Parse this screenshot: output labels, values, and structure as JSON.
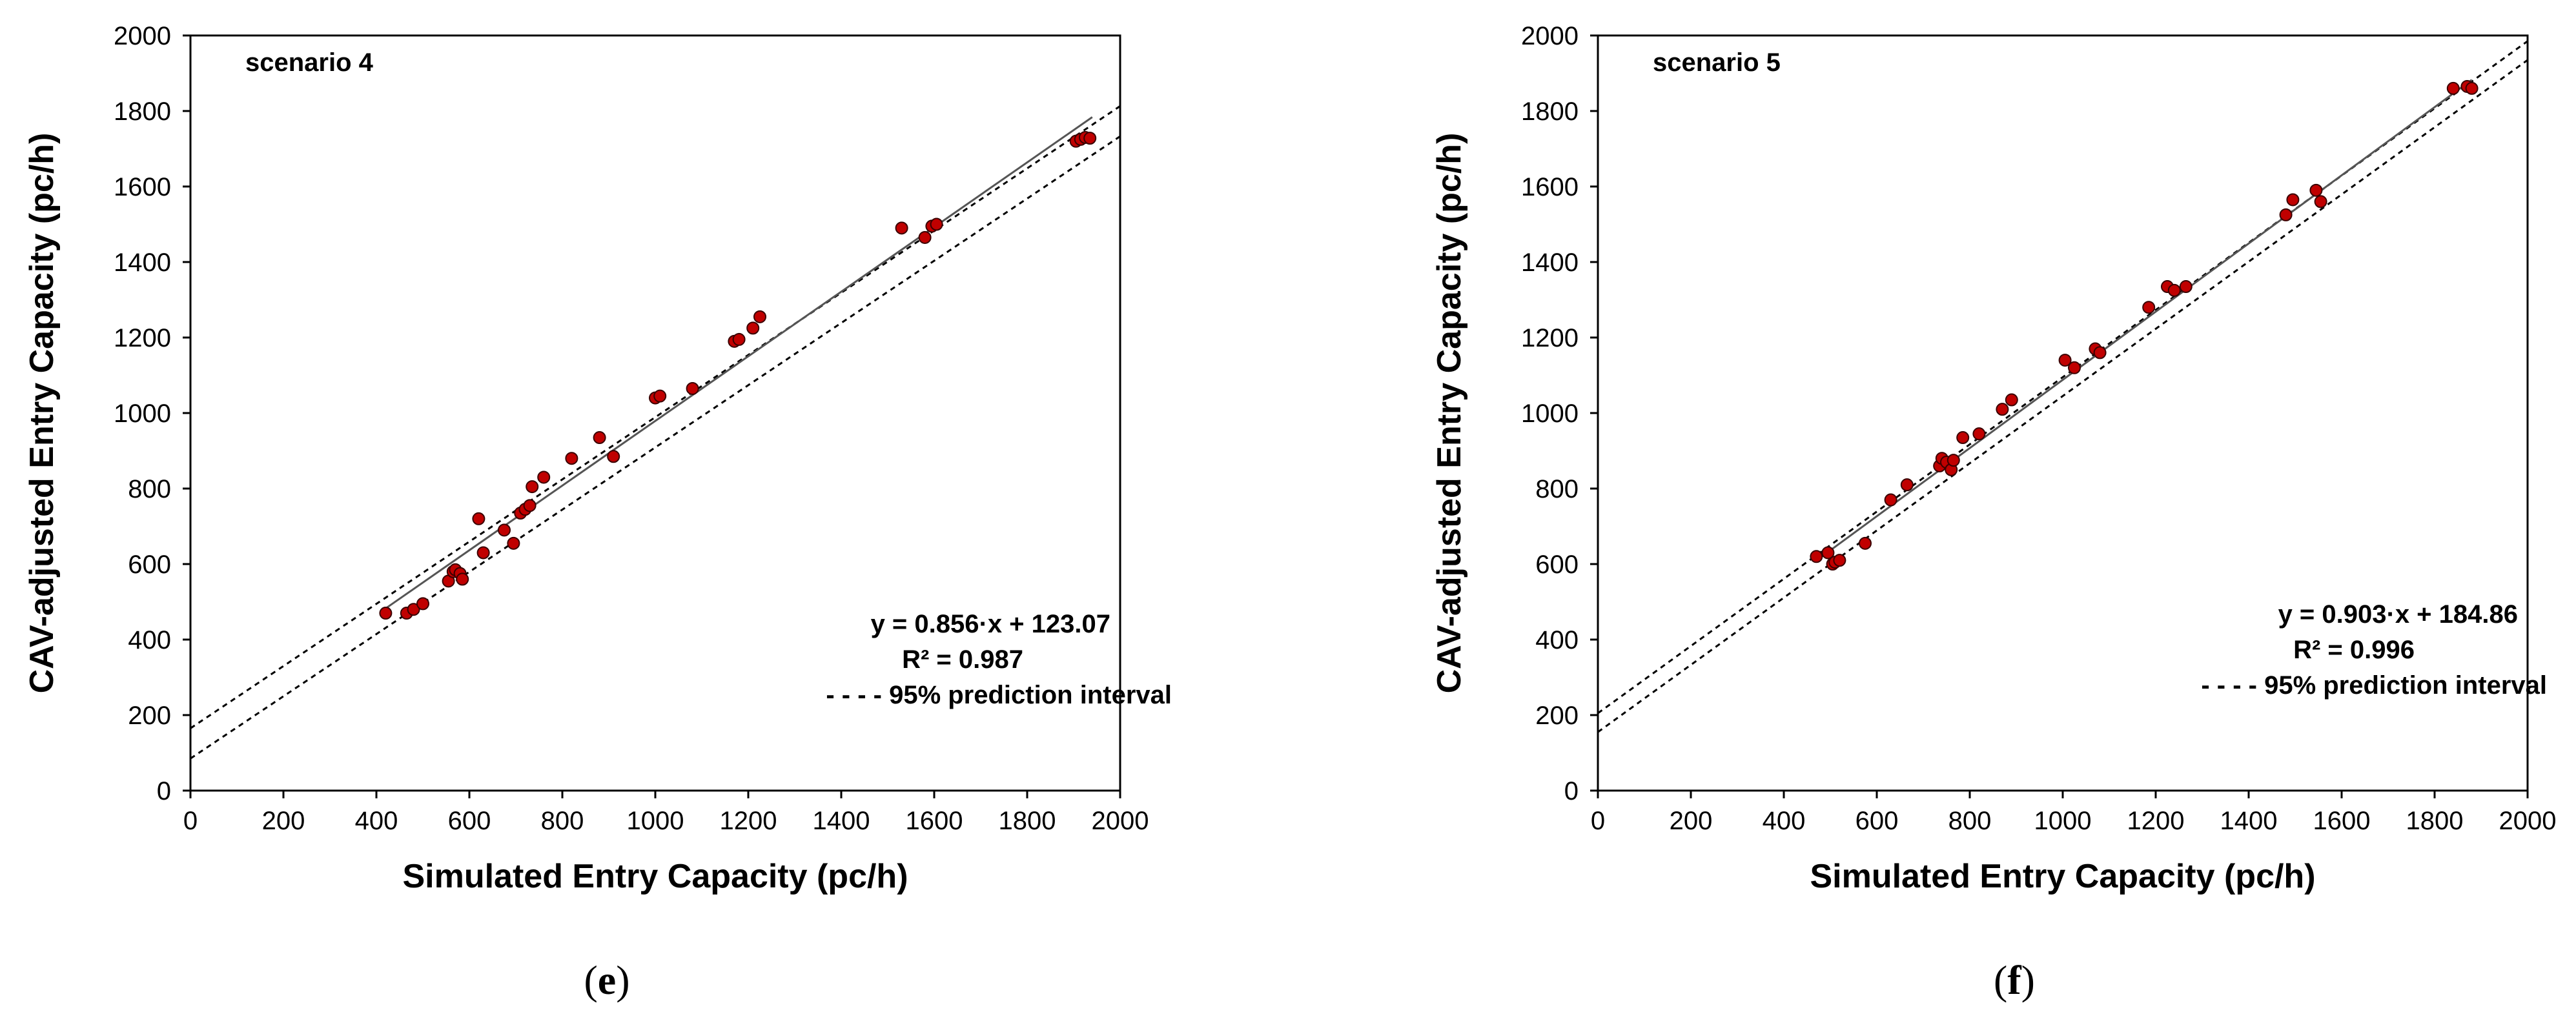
{
  "chart_data": [
    {
      "type": "scatter",
      "panel_label": "e",
      "scenario_label": "scenario 4",
      "xlabel": "Simulated Entry Capacity (pc/h)",
      "ylabel": "CAV-adjusted Entry Capacity (pc/h)",
      "xlim": [
        0,
        2000
      ],
      "ylim": [
        0,
        2000
      ],
      "xticks": [
        0,
        200,
        400,
        600,
        800,
        1000,
        1200,
        1400,
        1600,
        1800,
        2000
      ],
      "yticks": [
        0,
        200,
        400,
        600,
        800,
        1000,
        1200,
        1400,
        1600,
        1800,
        2000
      ],
      "marker_color": "#c00000",
      "regression": {
        "slope": 0.856,
        "intercept": 123.07,
        "x_range": [
          420,
          1940
        ]
      },
      "prediction_interval": {
        "lower_intercept": 85,
        "upper_intercept": 165,
        "slope": 0.824
      },
      "legend": {
        "equation": "y = 0.856·x + 123.07",
        "r2": "R² = 0.987",
        "interval_label": "- - - - 95% prediction interval"
      },
      "points": [
        [
          420,
          470
        ],
        [
          465,
          470
        ],
        [
          480,
          480
        ],
        [
          500,
          495
        ],
        [
          555,
          555
        ],
        [
          565,
          580
        ],
        [
          570,
          585
        ],
        [
          580,
          575
        ],
        [
          585,
          560
        ],
        [
          620,
          720
        ],
        [
          630,
          630
        ],
        [
          675,
          690
        ],
        [
          695,
          655
        ],
        [
          710,
          735
        ],
        [
          720,
          745
        ],
        [
          730,
          755
        ],
        [
          735,
          805
        ],
        [
          760,
          830
        ],
        [
          820,
          880
        ],
        [
          880,
          935
        ],
        [
          910,
          885
        ],
        [
          1000,
          1040
        ],
        [
          1010,
          1045
        ],
        [
          1080,
          1065
        ],
        [
          1170,
          1190
        ],
        [
          1180,
          1195
        ],
        [
          1210,
          1225
        ],
        [
          1225,
          1255
        ],
        [
          1530,
          1490
        ],
        [
          1580,
          1465
        ],
        [
          1595,
          1495
        ],
        [
          1605,
          1500
        ],
        [
          1905,
          1720
        ],
        [
          1915,
          1725
        ],
        [
          1925,
          1730
        ],
        [
          1935,
          1728
        ]
      ]
    },
    {
      "type": "scatter",
      "panel_label": "f",
      "scenario_label": "scenario 5",
      "xlabel": "Simulated Entry Capacity (pc/h)",
      "ylabel": "CAV-adjusted Entry Capacity (pc/h)",
      "xlim": [
        0,
        2000
      ],
      "ylim": [
        0,
        2000
      ],
      "xticks": [
        0,
        200,
        400,
        600,
        800,
        1000,
        1200,
        1400,
        1600,
        1800,
        2000
      ],
      "yticks": [
        0,
        200,
        400,
        600,
        800,
        1000,
        1200,
        1400,
        1600,
        1800,
        2000
      ],
      "marker_color": "#c00000",
      "regression": {
        "slope": 0.903,
        "intercept": 184.86,
        "x_range": [
          470,
          1880
        ]
      },
      "prediction_interval": {
        "lower_intercept": 155,
        "upper_intercept": 205,
        "slope": 0.89
      },
      "legend": {
        "equation": "y = 0.903·x + 184.86",
        "r2": "R² = 0.996",
        "interval_label": "- - - - 95% prediction interval"
      },
      "points": [
        [
          470,
          620
        ],
        [
          495,
          630
        ],
        [
          505,
          600
        ],
        [
          510,
          605
        ],
        [
          520,
          610
        ],
        [
          575,
          655
        ],
        [
          630,
          770
        ],
        [
          665,
          810
        ],
        [
          735,
          860
        ],
        [
          740,
          880
        ],
        [
          750,
          870
        ],
        [
          760,
          850
        ],
        [
          765,
          875
        ],
        [
          785,
          935
        ],
        [
          820,
          945
        ],
        [
          870,
          1010
        ],
        [
          890,
          1035
        ],
        [
          1005,
          1140
        ],
        [
          1025,
          1120
        ],
        [
          1070,
          1170
        ],
        [
          1080,
          1160
        ],
        [
          1185,
          1280
        ],
        [
          1225,
          1335
        ],
        [
          1240,
          1325
        ],
        [
          1265,
          1335
        ],
        [
          1480,
          1525
        ],
        [
          1495,
          1565
        ],
        [
          1545,
          1590
        ],
        [
          1555,
          1560
        ],
        [
          1840,
          1860
        ],
        [
          1870,
          1865
        ],
        [
          1880,
          1860
        ]
      ]
    }
  ]
}
